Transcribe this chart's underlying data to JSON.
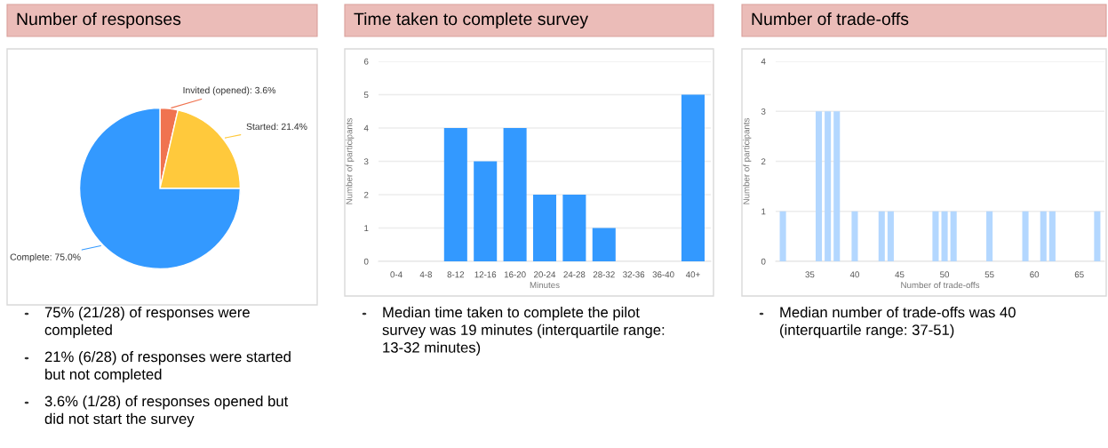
{
  "chart_data": [
    {
      "type": "pie",
      "title": "Number of responses",
      "categories": [
        "Invited (opened)",
        "Started",
        "Complete"
      ],
      "values": [
        3.6,
        21.4,
        75.0
      ],
      "value_labels": [
        "3.6%",
        "21.4%",
        "75.0%"
      ],
      "colors": [
        "#f07350",
        "#ffc93c",
        "#3399ff"
      ],
      "annotations": [
        "75% (21/28) of responses were\ncompleted",
        "21% (6/28) of responses were started\nbut not completed",
        "3.6% (1/28) of responses opened but\ndid not start the survey"
      ]
    },
    {
      "type": "bar",
      "title": "Time taken to complete survey",
      "xlabel": "Minutes",
      "ylabel": "Number of participants",
      "categories": [
        "0-4",
        "4-8",
        "8-12",
        "12-16",
        "16-20",
        "20-24",
        "24-28",
        "28-32",
        "32-36",
        "36-40",
        "40+"
      ],
      "values": [
        0,
        0,
        4,
        3,
        4,
        2,
        2,
        1,
        0,
        0,
        5
      ],
      "color": "#3399ff",
      "ylim": [
        0,
        6
      ],
      "yticks": [
        0,
        1,
        2,
        3,
        4,
        5,
        6
      ],
      "grid": "y",
      "annotations": [
        "Median time taken to complete the pilot\nsurvey was 19 minutes (interquartile range:\n13-32 minutes)"
      ]
    },
    {
      "type": "bar",
      "title": "Number of trade-offs",
      "xlabel": "Number of trade-offs",
      "ylabel": "Number of participants",
      "x": [
        32,
        36,
        37,
        38,
        40,
        43,
        44,
        49,
        50,
        51,
        55,
        59,
        61,
        62,
        67
      ],
      "values": [
        1,
        3,
        3,
        3,
        1,
        1,
        1,
        1,
        1,
        1,
        1,
        1,
        1,
        1,
        1
      ],
      "color": "#b3d7ff",
      "xlim": [
        31.2,
        67.8
      ],
      "xticks": [
        35,
        40,
        45,
        50,
        55,
        60,
        65
      ],
      "ylim": [
        0,
        4
      ],
      "yticks": [
        0,
        1,
        2,
        3,
        4
      ],
      "grid": "y",
      "annotations": [
        "Median number of trade-offs was 40\n(interquartile range: 37-51)"
      ]
    }
  ]
}
